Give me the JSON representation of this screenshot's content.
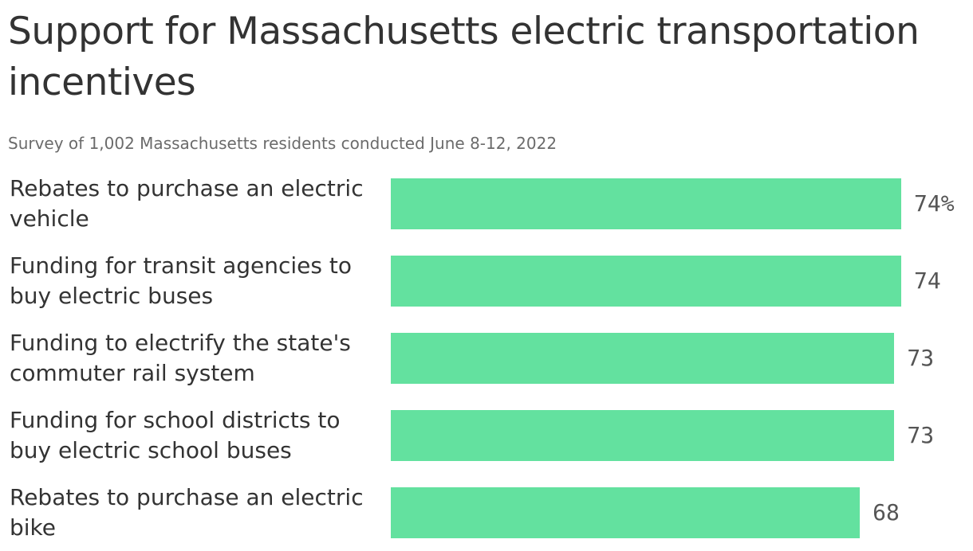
{
  "title": "Support for Massachusetts electric transportation incentives",
  "subtitle": "Survey of 1,002 Massachusetts residents conducted June 8-12, 2022",
  "colors": {
    "bar": "#63e19f",
    "text": "#333333",
    "subtitle": "#6b6b6b",
    "value_label": "#555555"
  },
  "chart_data": {
    "type": "bar",
    "orientation": "horizontal",
    "title": "Support for Massachusetts electric transportation incentives",
    "subtitle": "Survey of 1,002 Massachusetts residents conducted June 8-12, 2022",
    "categories": [
      "Rebates to purchase an electric vehicle",
      "Funding for transit agencies to buy electric buses",
      "Funding to electrify the state's commuter rail system",
      "Funding for school districts to buy electric school buses",
      "Rebates to purchase an electric bike"
    ],
    "values": [
      74,
      74,
      73,
      73,
      68
    ],
    "value_labels": [
      "74%",
      "74",
      "73",
      "73",
      "68"
    ],
    "unit": "%",
    "xlim": [
      0,
      74
    ],
    "grid": false,
    "legend": "none"
  }
}
